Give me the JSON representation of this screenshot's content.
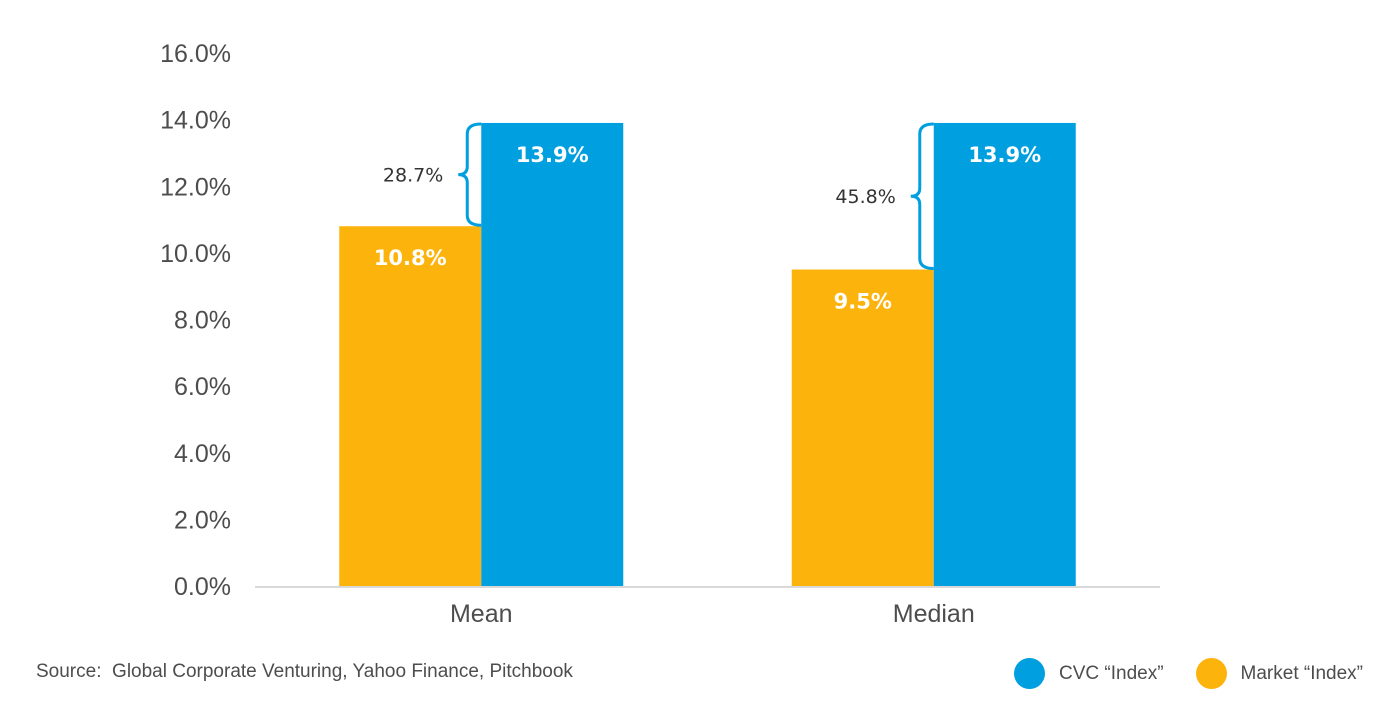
{
  "source": "Source:  Global Corporate Venturing, Yahoo Finance, Pitchbook",
  "colors": {
    "cvc": "#009fdf",
    "market": "#fcb40d",
    "axis": "#d9d9d9",
    "bracket": "#009fdf"
  },
  "chart_data": {
    "type": "bar",
    "title": "",
    "xlabel": "",
    "ylabel": "",
    "ylim": [
      0,
      16
    ],
    "yticks": [
      "0.0%",
      "2.0%",
      "4.0%",
      "6.0%",
      "8.0%",
      "10.0%",
      "12.0%",
      "14.0%",
      "16.0%"
    ],
    "categories": [
      "Mean",
      "Median"
    ],
    "series": [
      {
        "name": "Market “Index”",
        "color": "#fcb40d",
        "values": [
          10.8,
          9.5
        ],
        "labels": [
          "10.8%",
          "9.5%"
        ]
      },
      {
        "name": "CVC “Index”",
        "color": "#009fdf",
        "values": [
          13.9,
          13.9
        ],
        "labels": [
          "13.9%",
          "13.9%"
        ]
      }
    ],
    "annotations": [
      {
        "category": "Mean",
        "text": "28.7%"
      },
      {
        "category": "Median",
        "text": "45.8%"
      }
    ],
    "legend": {
      "position": "bottom-right",
      "items": [
        {
          "label": "CVC “Index”",
          "color": "#009fdf"
        },
        {
          "label": "Market “Index”",
          "color": "#fcb40d"
        }
      ]
    },
    "grid": false
  }
}
